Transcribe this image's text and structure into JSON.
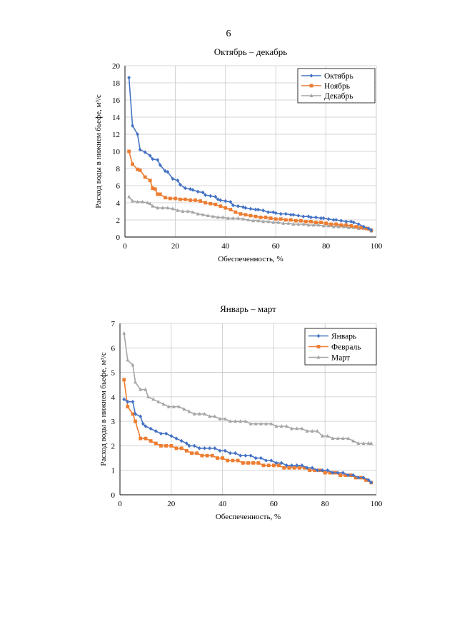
{
  "page": {
    "number": "6"
  },
  "chart_data": [
    {
      "type": "line",
      "title": "Октябрь – декабрь",
      "xlabel": "Обеспеченность, %",
      "ylabel": "Расход воды в нижнем бьефе, м³/с",
      "xlim": [
        0,
        100
      ],
      "ylim": [
        0,
        20
      ],
      "xticks": [
        0,
        20,
        40,
        60,
        80,
        100
      ],
      "yticks": [
        0,
        2,
        4,
        6,
        8,
        10,
        12,
        14,
        16,
        18,
        20
      ],
      "grid": true,
      "legend_position": "top-right",
      "series": [
        {
          "name": "Октябрь",
          "color": "#4472C4",
          "marker": "diamond",
          "x": [
            1.6,
            3,
            5,
            6,
            8,
            10,
            11,
            13,
            14,
            16,
            17,
            19,
            21,
            22,
            24,
            26,
            27,
            29,
            31,
            32,
            34,
            36,
            37,
            38,
            40,
            42,
            43,
            45,
            47,
            48,
            50,
            52,
            53,
            55,
            57,
            59,
            60,
            62,
            64,
            66,
            67,
            69,
            71,
            73,
            74,
            76,
            78,
            79,
            81,
            83,
            84,
            86,
            88,
            90,
            91,
            93,
            95,
            97,
            98
          ],
          "values": [
            18.6,
            13.0,
            12.0,
            10.2,
            9.9,
            9.5,
            9.1,
            9.0,
            8.4,
            7.7,
            7.6,
            6.8,
            6.6,
            6.1,
            5.7,
            5.6,
            5.5,
            5.3,
            5.2,
            4.9,
            4.8,
            4.7,
            4.4,
            4.3,
            4.2,
            4.1,
            3.7,
            3.6,
            3.5,
            3.4,
            3.3,
            3.2,
            3.2,
            3.1,
            2.9,
            2.9,
            2.8,
            2.7,
            2.7,
            2.6,
            2.6,
            2.5,
            2.4,
            2.4,
            2.3,
            2.3,
            2.2,
            2.2,
            2.1,
            2.0,
            2.0,
            1.9,
            1.8,
            1.8,
            1.7,
            1.5,
            1.2,
            1.0,
            0.8
          ]
        },
        {
          "name": "Ноябрь",
          "color": "#ED7D31",
          "marker": "square",
          "x": [
            1.6,
            3,
            5,
            6,
            8,
            10,
            11,
            12,
            13,
            14,
            16,
            18,
            20,
            22,
            24,
            26,
            28,
            30,
            32,
            34,
            36,
            38,
            40,
            42,
            44,
            46,
            48,
            50,
            52,
            54,
            56,
            58,
            60,
            62,
            64,
            66,
            68,
            70,
            72,
            74,
            76,
            78,
            80,
            82,
            84,
            86,
            88,
            90,
            92,
            94,
            96,
            98
          ],
          "values": [
            10.0,
            8.5,
            7.9,
            7.8,
            7.0,
            6.6,
            5.7,
            5.6,
            5.0,
            5.0,
            4.6,
            4.5,
            4.5,
            4.4,
            4.4,
            4.3,
            4.3,
            4.2,
            4.0,
            3.9,
            3.8,
            3.6,
            3.4,
            3.2,
            2.9,
            2.7,
            2.6,
            2.5,
            2.4,
            2.3,
            2.3,
            2.2,
            2.1,
            2.1,
            2.0,
            2.0,
            1.9,
            1.9,
            1.8,
            1.8,
            1.7,
            1.7,
            1.6,
            1.5,
            1.5,
            1.4,
            1.4,
            1.3,
            1.2,
            1.1,
            1.0,
            0.8
          ]
        },
        {
          "name": "Декабрь",
          "color": "#A5A5A5",
          "marker": "triangle",
          "x": [
            1.6,
            3,
            5,
            7,
            9,
            10,
            11,
            13,
            15,
            17,
            19,
            21,
            23,
            25,
            27,
            29,
            31,
            33,
            35,
            37,
            39,
            41,
            43,
            45,
            47,
            49,
            51,
            53,
            55,
            57,
            59,
            61,
            63,
            65,
            67,
            69,
            71,
            73,
            75,
            77,
            79,
            81,
            83,
            85,
            87,
            89,
            91,
            93,
            95,
            97,
            98
          ],
          "values": [
            4.7,
            4.2,
            4.1,
            4.1,
            4.0,
            3.9,
            3.6,
            3.4,
            3.4,
            3.4,
            3.3,
            3.1,
            3.0,
            3.0,
            2.9,
            2.7,
            2.6,
            2.5,
            2.4,
            2.3,
            2.3,
            2.2,
            2.2,
            2.2,
            2.1,
            2.0,
            1.9,
            1.9,
            1.8,
            1.8,
            1.7,
            1.7,
            1.6,
            1.6,
            1.5,
            1.5,
            1.5,
            1.4,
            1.4,
            1.4,
            1.3,
            1.3,
            1.2,
            1.2,
            1.2,
            1.1,
            1.1,
            1.0,
            1.0,
            0.9,
            0.7
          ]
        }
      ]
    },
    {
      "type": "line",
      "title": "Январь – март",
      "xlabel": "Обеспеченность, %",
      "ylabel": "Расход воды в нижнем бьефе, м³/с",
      "xlim": [
        0,
        100
      ],
      "ylim": [
        0,
        7
      ],
      "xticks": [
        0,
        20,
        40,
        60,
        80,
        100
      ],
      "yticks": [
        0,
        1,
        2,
        3,
        4,
        5,
        6,
        7
      ],
      "grid": true,
      "legend_position": "top-right",
      "series": [
        {
          "name": "Январь",
          "color": "#4472C4",
          "marker": "diamond",
          "x": [
            1.6,
            3,
            5,
            6,
            8,
            9,
            10,
            12,
            14,
            16,
            18,
            20,
            22,
            24,
            26,
            27,
            29,
            31,
            33,
            35,
            37,
            39,
            41,
            43,
            45,
            47,
            49,
            51,
            53,
            55,
            57,
            59,
            61,
            63,
            65,
            67,
            69,
            71,
            73,
            75,
            77,
            79,
            81,
            83,
            85,
            87,
            89,
            91,
            93,
            95,
            97,
            98
          ],
          "values": [
            3.9,
            3.8,
            3.8,
            3.3,
            3.2,
            2.9,
            2.8,
            2.7,
            2.6,
            2.5,
            2.5,
            2.4,
            2.3,
            2.2,
            2.1,
            2.0,
            2.0,
            1.9,
            1.9,
            1.9,
            1.9,
            1.8,
            1.8,
            1.7,
            1.7,
            1.6,
            1.6,
            1.6,
            1.5,
            1.5,
            1.4,
            1.4,
            1.3,
            1.3,
            1.2,
            1.2,
            1.2,
            1.2,
            1.1,
            1.1,
            1.0,
            1.0,
            1.0,
            0.9,
            0.9,
            0.9,
            0.8,
            0.8,
            0.7,
            0.7,
            0.6,
            0.5
          ]
        },
        {
          "name": "Февраль",
          "color": "#ED7D31",
          "marker": "square",
          "x": [
            1.6,
            3,
            5,
            6,
            8,
            10,
            12,
            14,
            16,
            18,
            20,
            22,
            24,
            26,
            28,
            30,
            32,
            34,
            36,
            38,
            40,
            42,
            44,
            46,
            48,
            50,
            52,
            54,
            56,
            58,
            60,
            62,
            64,
            66,
            68,
            70,
            72,
            74,
            76,
            78,
            80,
            82,
            84,
            86,
            88,
            90,
            92,
            94,
            96,
            98
          ],
          "values": [
            4.7,
            3.6,
            3.3,
            3.0,
            2.3,
            2.3,
            2.2,
            2.1,
            2.0,
            2.0,
            2.0,
            1.9,
            1.9,
            1.8,
            1.7,
            1.7,
            1.6,
            1.6,
            1.6,
            1.5,
            1.5,
            1.4,
            1.4,
            1.4,
            1.3,
            1.3,
            1.3,
            1.3,
            1.2,
            1.2,
            1.2,
            1.2,
            1.1,
            1.1,
            1.1,
            1.1,
            1.1,
            1.0,
            1.0,
            1.0,
            0.9,
            0.9,
            0.9,
            0.8,
            0.8,
            0.8,
            0.7,
            0.7,
            0.6,
            0.5
          ]
        },
        {
          "name": "Март",
          "color": "#A5A5A5",
          "marker": "triangle",
          "x": [
            1.6,
            3,
            5,
            6,
            8,
            10,
            11,
            13,
            15,
            17,
            19,
            21,
            23,
            25,
            27,
            29,
            31,
            33,
            35,
            37,
            39,
            41,
            43,
            45,
            47,
            49,
            51,
            53,
            55,
            57,
            59,
            61,
            63,
            65,
            67,
            69,
            71,
            73,
            75,
            77,
            79,
            81,
            83,
            85,
            87,
            89,
            91,
            93,
            95,
            97,
            98
          ],
          "values": [
            6.6,
            5.5,
            5.3,
            4.6,
            4.3,
            4.3,
            4.0,
            3.9,
            3.8,
            3.7,
            3.6,
            3.6,
            3.6,
            3.5,
            3.4,
            3.3,
            3.3,
            3.3,
            3.2,
            3.2,
            3.1,
            3.1,
            3.0,
            3.0,
            3.0,
            3.0,
            2.9,
            2.9,
            2.9,
            2.9,
            2.9,
            2.8,
            2.8,
            2.8,
            2.7,
            2.7,
            2.7,
            2.6,
            2.6,
            2.6,
            2.4,
            2.4,
            2.3,
            2.3,
            2.3,
            2.3,
            2.2,
            2.1,
            2.1,
            2.1,
            2.1
          ]
        }
      ]
    }
  ]
}
